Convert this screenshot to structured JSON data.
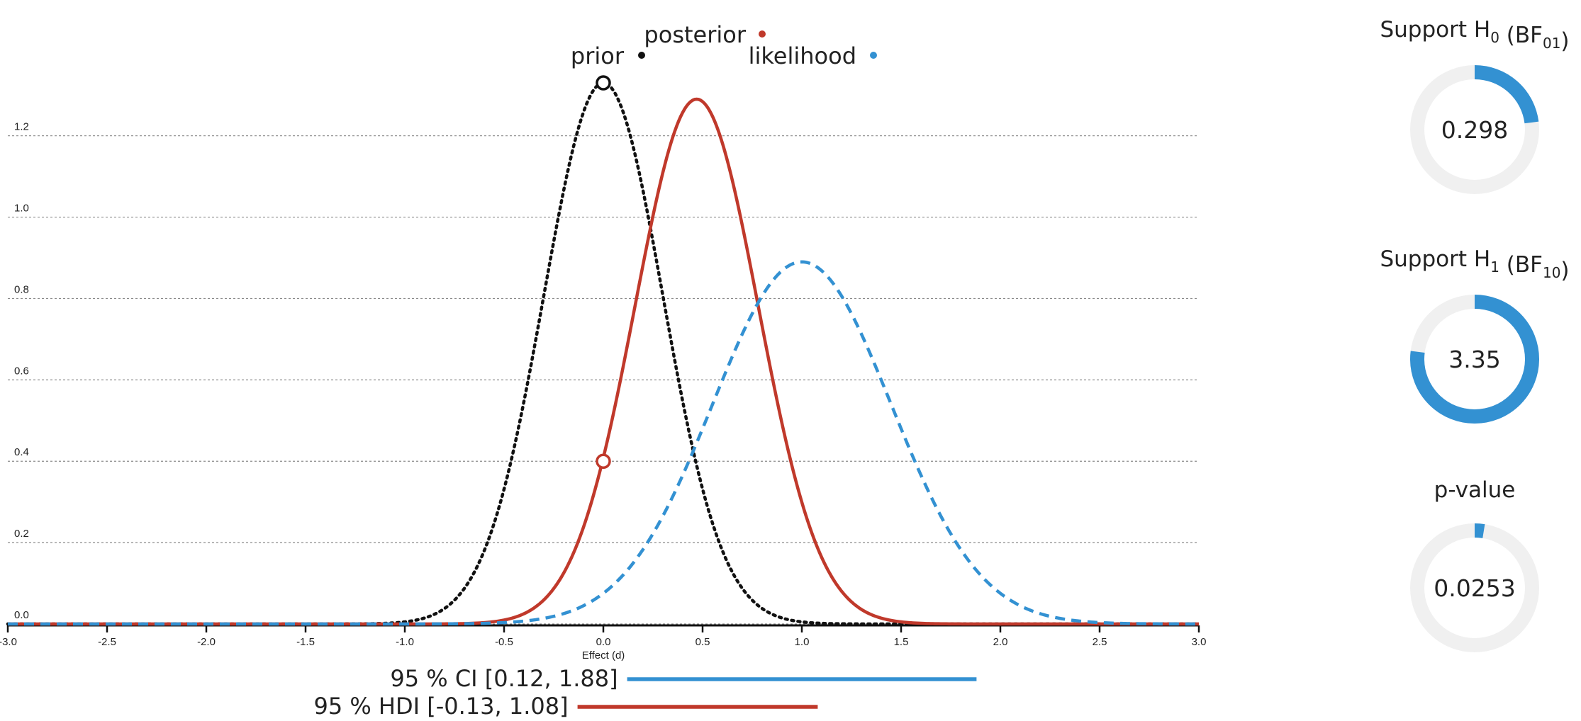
{
  "chart_data": {
    "type": "line",
    "xlabel": "Effect (d)",
    "ylabel": "",
    "xlim": [
      -3.0,
      3.0
    ],
    "ylim": [
      0.0,
      1.33
    ],
    "x_ticks": [
      "-3.0",
      "-2.5",
      "-2.0",
      "-1.5",
      "-1.0",
      "-0.5",
      "0.0",
      "0.5",
      "1.0",
      "1.5",
      "2.0",
      "2.5",
      "3.0"
    ],
    "y_ticks": [
      "0.0",
      "0.2",
      "0.4",
      "0.6",
      "0.8",
      "1.0",
      "1.2"
    ],
    "grid": "horizontal dotted",
    "series": [
      {
        "name": "prior",
        "distribution": "normal",
        "mean": 0.0,
        "sd": 0.3,
        "peak": 1.33,
        "color": "#111111",
        "style": "dotted"
      },
      {
        "name": "posterior",
        "distribution": "normal",
        "mean": 0.47,
        "sd": 0.31,
        "peak": 1.29,
        "color": "#c0392b",
        "style": "solid"
      },
      {
        "name": "likelihood",
        "distribution": "normal",
        "mean": 1.0,
        "sd": 0.45,
        "peak": 0.89,
        "color": "#3391d2",
        "style": "dashed"
      }
    ],
    "markers": [
      {
        "name": "prior density at 0",
        "x": 0.0,
        "y": 1.33,
        "color": "#111111"
      },
      {
        "name": "posterior density at 0",
        "x": 0.0,
        "y": 0.4,
        "color": "#c0392b"
      }
    ],
    "intervals": [
      {
        "label": "95 % CI [0.12, 1.88]",
        "low": 0.12,
        "high": 1.88,
        "color": "#3391d2"
      },
      {
        "label": "95 % HDI [-0.13, 1.08]",
        "low": -0.13,
        "high": 1.08,
        "color": "#c0392b"
      }
    ]
  },
  "gauges": [
    {
      "title_prefix": "Support H",
      "title_sub": "0",
      "title_mid": " (BF",
      "title_sub2": "01",
      "title_suffix": ")",
      "value": "0.298",
      "fraction": 0.23,
      "color": "#3391d2",
      "track_color": "#f0f0f0"
    },
    {
      "title_prefix": "Support H",
      "title_sub": "1",
      "title_mid": " (BF",
      "title_sub2": "10",
      "title_suffix": ")",
      "value": "3.35",
      "fraction": 0.77,
      "color": "#3391d2",
      "track_color": "#f0f0f0"
    },
    {
      "title_prefix": "p-value",
      "title_sub": "",
      "title_mid": "",
      "title_sub2": "",
      "title_suffix": "",
      "value": "0.0253",
      "fraction": 0.0253,
      "color": "#3391d2",
      "track_color": "#f0f0f0"
    }
  ]
}
